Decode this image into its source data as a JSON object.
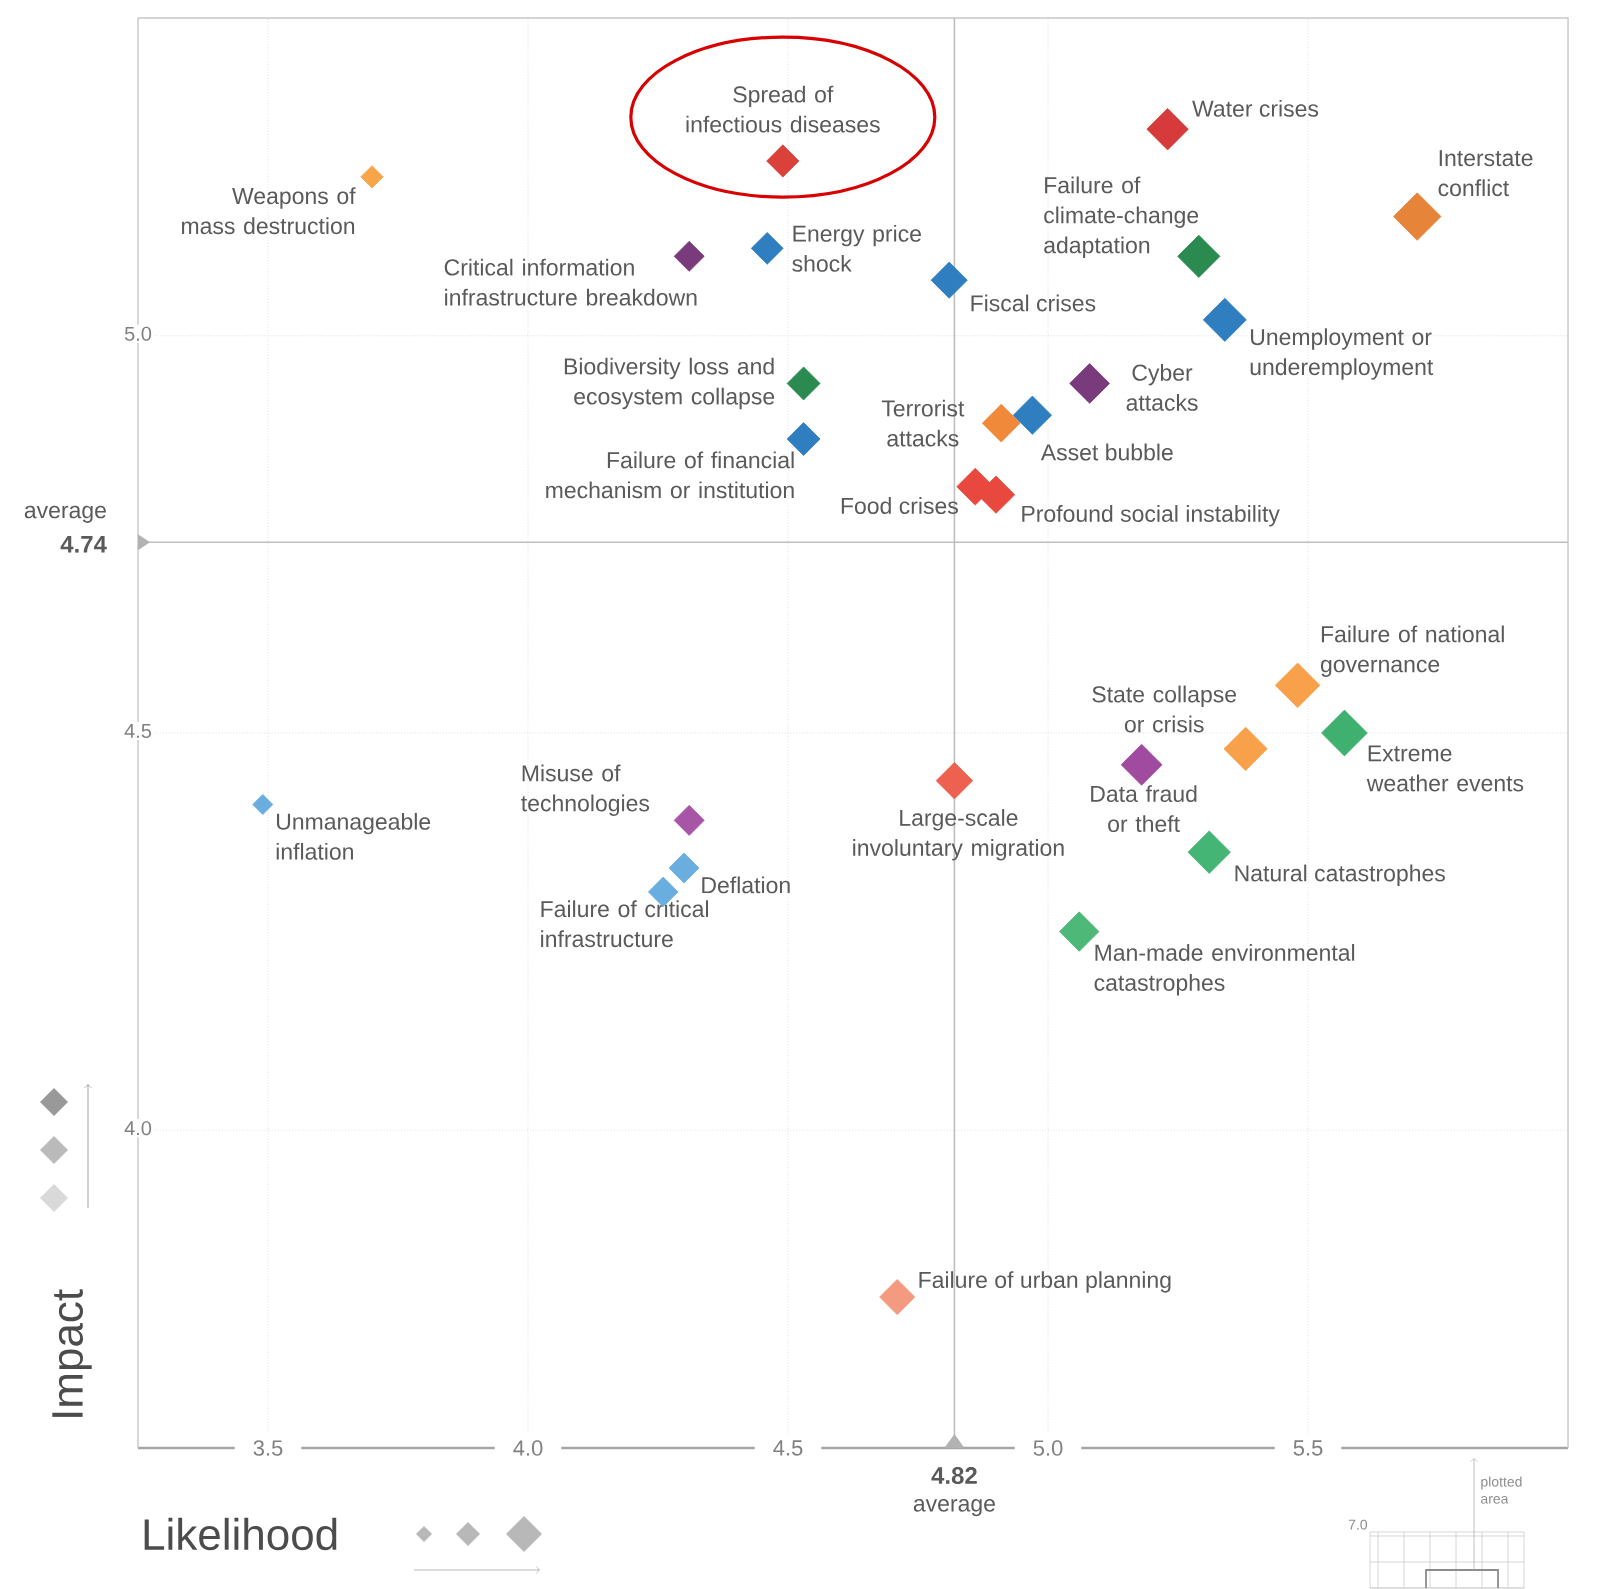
{
  "chart_data": {
    "type": "bubble",
    "sizes": [
      0.46,
      0.22,
      0.76,
      1,
      0.79,
      0.4,
      0.45,
      0.58,
      0.82,
      0.48,
      0.7,
      0.63,
      0.65,
      0.48,
      0.6,
      0.62,
      0.88,
      0.83,
      0.93,
      0.74,
      0.59,
      0.8,
      0.69,
      0.18,
      0.4,
      0.4,
      0.39,
      0.55
    ],
    "xlabel": "Likelihood",
    "ylabel": "Impact",
    "xlim": [
      3.25,
      6.0
    ],
    "ylim": [
      3.6,
      5.4
    ],
    "xticks": [
      3.5,
      {
        "value": 4,
        "label": "4.0"
      },
      4.5,
      {
        "value": 5,
        "label": "5.0"
      },
      5.5
    ],
    "yticks": [
      {
        "value": 4,
        "label": "4.0"
      },
      4.5,
      {
        "value": 5,
        "label": "5.0"
      }
    ],
    "grid": true,
    "marker": "diamond",
    "x": [
      4.49,
      3.7,
      5.23,
      5.71,
      5.29,
      4.31,
      4.46,
      4.81,
      5.34,
      4.53,
      5.08,
      4.91,
      4.97,
      4.53,
      4.86,
      4.9,
      5.48,
      5.38,
      5.57,
      5.18,
      4.82,
      5.31,
      5.06,
      3.49,
      4.31,
      4.3,
      4.26,
      4.71
    ],
    "values": [
      5.22,
      5.2,
      5.26,
      5.15,
      5.1,
      5.1,
      5.11,
      5.07,
      5.02,
      4.94,
      4.94,
      4.89,
      4.9,
      4.87,
      4.81,
      4.8,
      4.56,
      4.48,
      4.5,
      4.46,
      4.44,
      4.35,
      4.25,
      4.41,
      4.39,
      4.33,
      4.3,
      3.79
    ],
    "colors": [
      "#d9413a",
      "#f8a54a",
      "#d63a3a",
      "#e6843a",
      "#2a8a50",
      "#7a3b7c",
      "#2f7ec0",
      "#2f7ec0",
      "#2f7ec0",
      "#2a8a50",
      "#7a3b7c",
      "#f08a3a",
      "#2f7ec0",
      "#2f7ec0",
      "#e8483e",
      "#e8483e",
      "#f8a04a",
      "#f8a04a",
      "#40b070",
      "#a04aa0",
      "#ee6050",
      "#45b575",
      "#4db878",
      "#6aaee0",
      "#a855a8",
      "#6aaee0",
      "#6aaee0",
      "#f49a80"
    ],
    "ref_lines": [
      {
        "axis": "y",
        "value": 4.74,
        "label": "average"
      },
      {
        "axis": "x",
        "value": 4.82,
        "label": "average"
      }
    ],
    "annotations": [
      {
        "text": "Spread of infectious diseases",
        "x": 4.49,
        "y": 5.22
      },
      {
        "text": "Weapons of mass destruction",
        "x": 3.7,
        "y": 5.2
      },
      {
        "text": "Water crises",
        "x": 5.23,
        "y": 5.26
      },
      {
        "text": "Interstate conflict",
        "x": 5.71,
        "y": 5.15
      },
      {
        "text": "Failure of climate-change adaptation",
        "x": 5.29,
        "y": 5.1
      },
      {
        "text": "Critical information infrastructure breakdown",
        "x": 4.31,
        "y": 5.1
      },
      {
        "text": "Energy price shock",
        "x": 4.46,
        "y": 5.11
      },
      {
        "text": "Fiscal crises",
        "x": 4.81,
        "y": 5.07
      },
      {
        "text": "Unemployment or underemployment",
        "x": 5.34,
        "y": 5.02
      },
      {
        "text": "Biodiversity loss and ecosystem collapse",
        "x": 4.53,
        "y": 4.94
      },
      {
        "text": "Cyber attacks",
        "x": 5.08,
        "y": 4.94
      },
      {
        "text": "Terrorist attacks",
        "x": 4.91,
        "y": 4.89
      },
      {
        "text": "Asset bubble",
        "x": 4.97,
        "y": 4.9
      },
      {
        "text": "Failure of financial mechanism or institution",
        "x": 4.53,
        "y": 4.87
      },
      {
        "text": "Food crises",
        "x": 4.86,
        "y": 4.81
      },
      {
        "text": "Profound social instability",
        "x": 4.9,
        "y": 4.8
      },
      {
        "text": "Failure of national governance",
        "x": 5.48,
        "y": 4.56
      },
      {
        "text": "State collapse or crisis",
        "x": 5.38,
        "y": 4.48
      },
      {
        "text": "Extreme weather events",
        "x": 5.57,
        "y": 4.5
      },
      {
        "text": "Data fraud or theft",
        "x": 5.18,
        "y": 4.46
      },
      {
        "text": "Large-scale involuntary migration",
        "x": 4.82,
        "y": 4.44
      },
      {
        "text": "Natural catastrophes",
        "x": 5.31,
        "y": 4.35
      },
      {
        "text": "Man-made environmental catastrophes",
        "x": 5.06,
        "y": 4.25
      },
      {
        "text": "Unmanageable inflation",
        "x": 3.49,
        "y": 4.41
      },
      {
        "text": "Misuse of technologies",
        "x": 4.31,
        "y": 4.39
      },
      {
        "text": "Deflation",
        "x": 4.3,
        "y": 4.33
      },
      {
        "text": "Failure of critical infrastructure",
        "x": 4.26,
        "y": 4.3
      },
      {
        "text": "Failure of urban planning",
        "x": 4.71,
        "y": 3.79
      },
      "4.74",
      "4.82",
      "7.0",
      "plotted area"
    ]
  }
}
